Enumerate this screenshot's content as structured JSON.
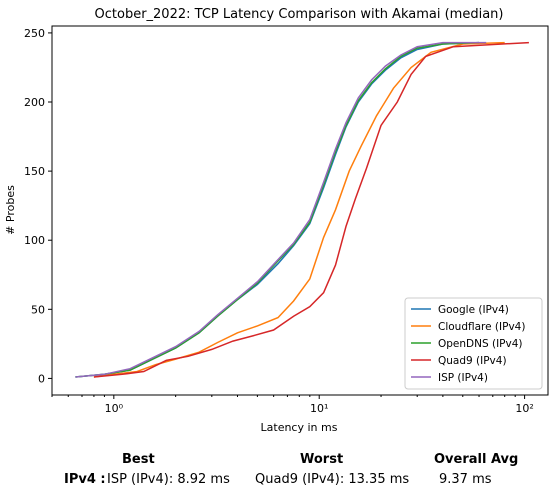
{
  "chart_data": {
    "type": "line",
    "title": "October_2022: TCP Latency Comparison with Akamai (median)",
    "xlabel": "Latency in ms",
    "ylabel": "# Probes",
    "xscale": "log",
    "xlim": [
      0.5,
      130
    ],
    "ylim": [
      -12,
      255
    ],
    "x_ticks": [
      1,
      10,
      100
    ],
    "x_tick_labels": [
      "10⁰",
      "10¹",
      "10²"
    ],
    "y_ticks": [
      0,
      50,
      100,
      150,
      200,
      250
    ],
    "grid": false,
    "legend_position": "lower right",
    "series": [
      {
        "name": "Google (IPv4)",
        "color": "#1f77b4",
        "x": [
          0.65,
          0.9,
          1.2,
          1.5,
          2.0,
          2.6,
          3.2,
          4.0,
          5.0,
          6.3,
          7.5,
          9.0,
          10.5,
          12.0,
          13.5,
          15.5,
          18.0,
          21.0,
          25.0,
          30.0,
          40.0,
          60.0
        ],
        "y": [
          1,
          3,
          6,
          13,
          22,
          33,
          45,
          57,
          68,
          83,
          96,
          112,
          138,
          162,
          182,
          200,
          213,
          223,
          232,
          238,
          242,
          243
        ]
      },
      {
        "name": "Cloudflare (IPv4)",
        "color": "#ff7f0e",
        "x": [
          0.8,
          1.0,
          1.3,
          1.6,
          2.0,
          2.6,
          3.2,
          4.0,
          5.0,
          6.3,
          7.5,
          9.0,
          10.5,
          12.0,
          14.0,
          16.0,
          19.0,
          23.0,
          28.0,
          35.0,
          50.0,
          80.0
        ],
        "y": [
          1,
          3,
          5,
          10,
          14,
          19,
          26,
          33,
          38,
          44,
          56,
          72,
          102,
          122,
          150,
          168,
          190,
          210,
          225,
          236,
          242,
          243
        ]
      },
      {
        "name": "OpenDNS (IPv4)",
        "color": "#2ca02c",
        "x": [
          0.65,
          0.9,
          1.2,
          1.5,
          2.0,
          2.6,
          3.2,
          4.0,
          5.0,
          6.3,
          7.5,
          9.0,
          10.5,
          12.0,
          13.5,
          15.5,
          18.0,
          21.0,
          25.0,
          30.0,
          40.0,
          60.0
        ],
        "y": [
          1,
          3,
          6,
          13,
          22,
          33,
          45,
          57,
          69,
          85,
          97,
          113,
          140,
          164,
          183,
          201,
          214,
          224,
          233,
          239,
          242,
          243
        ]
      },
      {
        "name": "Quad9 (IPv4)",
        "color": "#d62728",
        "x": [
          0.8,
          1.1,
          1.4,
          1.8,
          2.3,
          3.0,
          3.8,
          4.8,
          6.0,
          7.5,
          9.0,
          10.5,
          12.0,
          13.5,
          15.0,
          17.0,
          20.0,
          24.0,
          28.0,
          33.0,
          45.0,
          105.0
        ],
        "y": [
          1,
          3,
          5,
          13,
          16,
          21,
          27,
          31,
          35,
          45,
          52,
          62,
          82,
          110,
          130,
          152,
          183,
          200,
          220,
          233,
          240,
          243
        ]
      },
      {
        "name": "ISP (IPv4)",
        "color": "#9467bd",
        "x": [
          0.65,
          0.9,
          1.2,
          1.5,
          2.0,
          2.6,
          3.2,
          4.0,
          5.0,
          6.3,
          7.5,
          9.0,
          10.5,
          12.0,
          13.5,
          15.5,
          18.0,
          21.0,
          25.0,
          30.0,
          40.0,
          65.0
        ],
        "y": [
          1,
          3,
          7,
          14,
          23,
          34,
          46,
          58,
          70,
          86,
          98,
          115,
          142,
          166,
          185,
          203,
          216,
          226,
          234,
          240,
          243,
          243
        ]
      }
    ]
  },
  "stats": {
    "best_header": "Best",
    "worst_header": "Worst",
    "avg_header": "Overall Avg",
    "row_label": "IPv4 :",
    "best_value": "ISP (IPv4): 8.92 ms",
    "worst_value": "Quad9 (IPv4): 13.35 ms",
    "avg_value": "9.37 ms"
  }
}
